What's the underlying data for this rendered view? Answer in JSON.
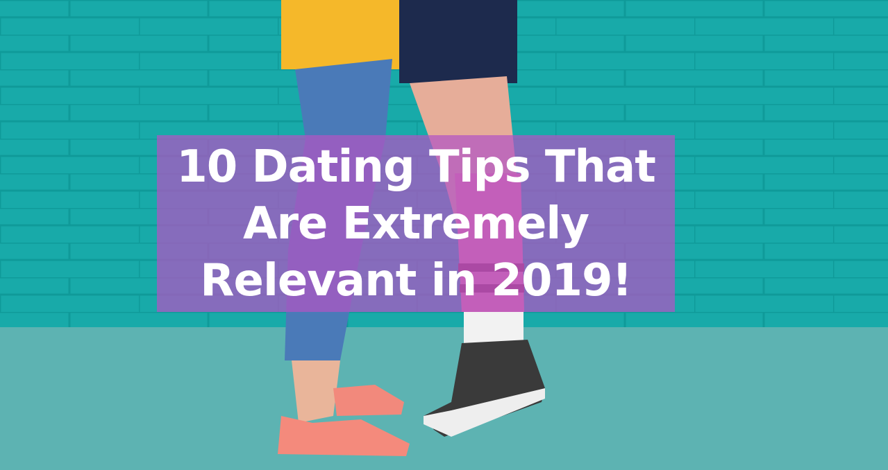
{
  "headline": {
    "lines": [
      "10 Dating Tips That",
      "Are Extremely",
      "Relevant in 2019!"
    ]
  },
  "colors": {
    "wall": "#17a9a8",
    "floor": "#5db3b2",
    "overlay": "#b254c4",
    "text": "#ffffff"
  }
}
